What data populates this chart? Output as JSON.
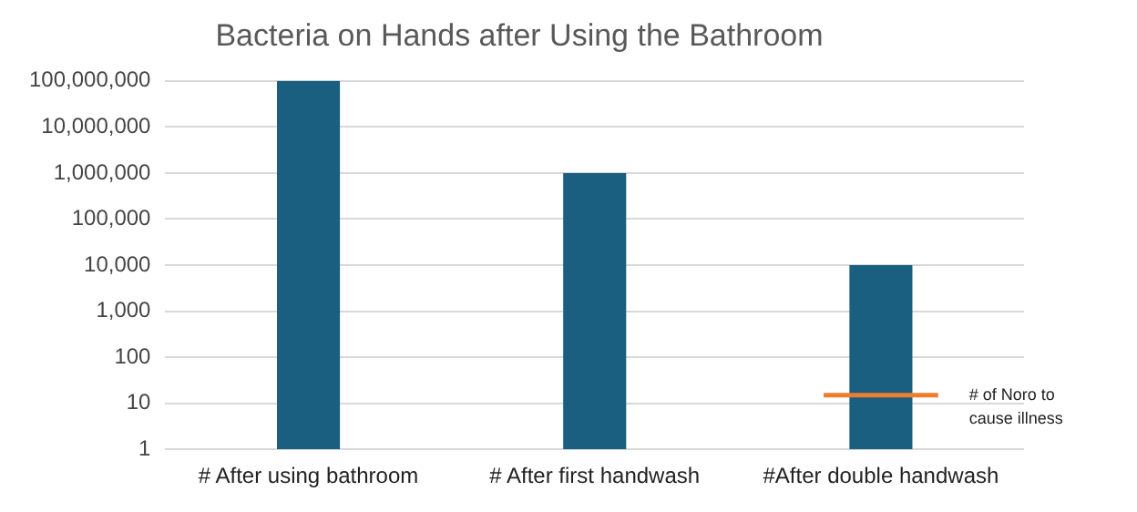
{
  "chart_data": {
    "type": "bar",
    "title": "Bacteria on Hands after Using the Bathroom",
    "categories": [
      "# After using bathroom",
      "# After first handwash",
      "#After double handwash"
    ],
    "values": [
      100000000,
      1000000,
      10000
    ],
    "color": "#1a5e80",
    "log": true,
    "ylim": [
      1,
      100000000
    ],
    "yticks": [
      {
        "value": 1,
        "label": "1"
      },
      {
        "value": 10,
        "label": "10"
      },
      {
        "value": 100,
        "label": "100"
      },
      {
        "value": 1000,
        "label": "1,000"
      },
      {
        "value": 10000,
        "label": "10,000"
      },
      {
        "value": 100000,
        "label": "100,000"
      },
      {
        "value": 1000000,
        "label": "1,000,000"
      },
      {
        "value": 10000000,
        "label": "10,000,000"
      },
      {
        "value": 100000000,
        "label": "100,000,000"
      }
    ],
    "grid": "y",
    "ref_lines": [
      {
        "axis": "y",
        "value": 15,
        "label": "# of Noro to cause illness",
        "color": "#ed7d31"
      }
    ]
  }
}
